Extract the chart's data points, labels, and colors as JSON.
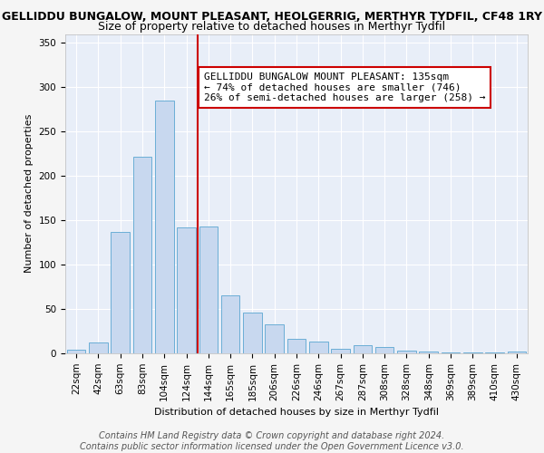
{
  "title_line1": "GELLIDDU BUNGALOW, MOUNT PLEASANT, HEOLGERRIG, MERTHYR TYDFIL, CF48 1RY",
  "title_line2": "Size of property relative to detached houses in Merthyr Tydfil",
  "xlabel": "Distribution of detached houses by size in Merthyr Tydfil",
  "ylabel": "Number of detached properties",
  "categories": [
    "22sqm",
    "42sqm",
    "63sqm",
    "83sqm",
    "104sqm",
    "124sqm",
    "144sqm",
    "165sqm",
    "185sqm",
    "206sqm",
    "226sqm",
    "246sqm",
    "267sqm",
    "287sqm",
    "308sqm",
    "328sqm",
    "348sqm",
    "369sqm",
    "389sqm",
    "410sqm",
    "430sqm"
  ],
  "values": [
    4,
    12,
    137,
    222,
    285,
    142,
    143,
    65,
    46,
    33,
    16,
    13,
    5,
    9,
    7,
    3,
    2,
    1,
    1,
    1,
    2
  ],
  "bar_color": "#c8d8ef",
  "bar_edge_color": "#6baed6",
  "vline_color": "#cc0000",
  "vline_position": 5.5,
  "annotation_text": "GELLIDDU BUNGALOW MOUNT PLEASANT: 135sqm\n← 74% of detached houses are smaller (746)\n26% of semi-detached houses are larger (258) →",
  "annotation_box_facecolor": "#ffffff",
  "annotation_box_edgecolor": "#cc0000",
  "ylim": [
    0,
    360
  ],
  "yticks": [
    0,
    50,
    100,
    150,
    200,
    250,
    300,
    350
  ],
  "axes_facecolor": "#e8eef8",
  "fig_facecolor": "#f5f5f5",
  "grid_color": "#ffffff",
  "title1_fontsize": 9,
  "title2_fontsize": 9,
  "axis_label_fontsize": 8,
  "tick_fontsize": 7.5,
  "annotation_fontsize": 8,
  "footer_fontsize": 7,
  "footer_text": "Contains HM Land Registry data © Crown copyright and database right 2024.\nContains public sector information licensed under the Open Government Licence v3.0."
}
